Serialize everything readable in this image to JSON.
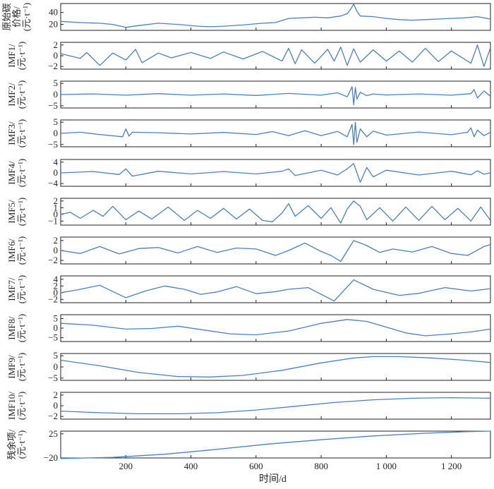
{
  "chart_data": {
    "type": "line",
    "layout": "stacked-panels",
    "xlabel": "时间/d",
    "xlim": [
      0,
      1320
    ],
    "x_ticks": [
      200,
      400,
      600,
      800,
      1000,
      1200
    ],
    "x_tick_labels": [
      "200",
      "400",
      "600",
      "800",
      "1 000",
      "1 200"
    ],
    "line_color": "#4a7fc1",
    "grid": false,
    "panels": [
      {
        "id": "price",
        "ylabel_lines": [
          "原始碳",
          "价格/",
          "(元·t⁻¹)"
        ],
        "ylim": [
          10,
          55
        ],
        "yticks": [
          20,
          40
        ],
        "ytick_labels": [
          "20",
          "40"
        ],
        "x": [
          0,
          60,
          120,
          160,
          200,
          240,
          300,
          360,
          420,
          460,
          500,
          560,
          620,
          660,
          700,
          740,
          780,
          820,
          860,
          880,
          890,
          900,
          910,
          920,
          960,
          1000,
          1040,
          1080,
          1120,
          1160,
          1200,
          1240,
          1280,
          1320
        ],
        "values": [
          25,
          23,
          22,
          20,
          15,
          18,
          22,
          20,
          17,
          16,
          17,
          19,
          22,
          23,
          30,
          31,
          32,
          31,
          34,
          38,
          45,
          54,
          42,
          34,
          33,
          30,
          28,
          27,
          28,
          29,
          30,
          31,
          33,
          29
        ]
      },
      {
        "id": "imf1",
        "ylabel_lines": [
          "IMF1/",
          "(元·t⁻¹)"
        ],
        "ylim": [
          -2.5,
          2.5
        ],
        "yticks": [
          -2,
          0,
          2
        ],
        "ytick_labels": [
          "−2",
          "0",
          "2"
        ],
        "x": [
          0,
          60,
          80,
          120,
          160,
          200,
          230,
          250,
          300,
          340,
          400,
          460,
          500,
          560,
          620,
          680,
          700,
          720,
          740,
          780,
          820,
          840,
          860,
          880,
          900,
          920,
          960,
          1000,
          1040,
          1080,
          1120,
          1160,
          1200,
          1260,
          1280,
          1300,
          1320
        ],
        "values": [
          0.4,
          -0.5,
          0.6,
          -1.8,
          0.5,
          -0.8,
          1.2,
          -1.3,
          0.5,
          -0.4,
          0.6,
          -0.5,
          0.7,
          -0.6,
          0.8,
          -1.0,
          1.4,
          -1.5,
          1.1,
          -1.4,
          1.2,
          -1.0,
          1.6,
          -1.8,
          1.3,
          -1.2,
          1.1,
          -1.0,
          0.9,
          -1.2,
          1.4,
          -1.1,
          0.9,
          -1.4,
          2.0,
          -2.0,
          1.5
        ]
      },
      {
        "id": "imf2",
        "ylabel_lines": [
          "IMF2/",
          "(元·t⁻¹)"
        ],
        "ylim": [
          -6,
          6
        ],
        "yticks": [
          -5,
          0,
          5
        ],
        "ytick_labels": [
          "−5",
          "0",
          "5"
        ],
        "x": [
          0,
          100,
          200,
          300,
          400,
          500,
          600,
          700,
          800,
          850,
          880,
          895,
          900,
          905,
          910,
          920,
          940,
          960,
          1000,
          1100,
          1200,
          1260,
          1270,
          1280,
          1300,
          1320
        ],
        "values": [
          0,
          0.3,
          -0.3,
          0.4,
          -0.3,
          0.3,
          -0.4,
          0.5,
          -0.3,
          0.8,
          -1.0,
          3.5,
          -4.5,
          3.2,
          -2.0,
          1.0,
          -0.5,
          0.3,
          -0.2,
          0.3,
          -0.3,
          0.4,
          2.2,
          -1.5,
          1.6,
          -0.8
        ]
      },
      {
        "id": "imf3",
        "ylabel_lines": [
          "IMF3/",
          "(元·t⁻¹)"
        ],
        "ylim": [
          -6,
          6
        ],
        "yticks": [
          -5,
          0,
          5
        ],
        "ytick_labels": [
          "−5",
          "0",
          "5"
        ],
        "x": [
          0,
          60,
          120,
          190,
          200,
          210,
          220,
          300,
          400,
          500,
          600,
          650,
          700,
          750,
          800,
          850,
          880,
          895,
          900,
          905,
          910,
          920,
          940,
          960,
          1000,
          1100,
          1200,
          1250,
          1260,
          1270,
          1280,
          1300,
          1320
        ],
        "values": [
          0,
          0.5,
          -0.5,
          -1.5,
          2.0,
          -1.2,
          0.5,
          0.3,
          -0.3,
          0.4,
          -0.5,
          0.8,
          -1.0,
          1.2,
          -1.0,
          0.9,
          -1.5,
          4.0,
          -5.0,
          5.0,
          -4.0,
          2.0,
          -1.5,
          1.0,
          -0.8,
          0.6,
          -0.6,
          0.5,
          2.5,
          -1.5,
          1.5,
          -1.0,
          0.5
        ]
      },
      {
        "id": "imf4",
        "ylabel_lines": [
          "IMF4/",
          "(元·t⁻¹)"
        ],
        "ylim": [
          -5,
          5
        ],
        "yticks": [
          -4,
          0,
          4
        ],
        "ytick_labels": [
          "−4",
          "0",
          "4"
        ],
        "x": [
          0,
          100,
          180,
          200,
          220,
          300,
          400,
          500,
          600,
          680,
          700,
          720,
          800,
          850,
          880,
          900,
          920,
          940,
          960,
          1000,
          1100,
          1200,
          1260,
          1280,
          1300,
          1320
        ],
        "values": [
          0,
          0.5,
          -0.6,
          1.5,
          -1.2,
          0.6,
          -0.4,
          0.5,
          -0.4,
          0.6,
          1.5,
          -1.0,
          1.0,
          -0.8,
          1.5,
          3.5,
          -3.5,
          2.0,
          -1.5,
          1.0,
          -0.8,
          0.6,
          -0.7,
          0.8,
          -0.5,
          0
        ]
      },
      {
        "id": "imf5",
        "ylabel_lines": [
          "IMF5/",
          "(元·t⁻¹)"
        ],
        "ylim": [
          -1.6,
          2.4
        ],
        "yticks": [
          -1,
          0,
          1,
          2
        ],
        "ytick_labels": [
          "−1",
          "0",
          "1",
          "2"
        ],
        "x": [
          0,
          30,
          60,
          100,
          130,
          160,
          200,
          240,
          280,
          330,
          380,
          420,
          460,
          500,
          540,
          580,
          620,
          650,
          680,
          700,
          720,
          760,
          800,
          830,
          860,
          880,
          900,
          920,
          940,
          980,
          1020,
          1060,
          1100,
          1140,
          1180,
          1220,
          1260,
          1290,
          1320
        ],
        "values": [
          0,
          0.3,
          -0.6,
          0.6,
          -0.3,
          1.2,
          -0.8,
          0.5,
          -0.7,
          1.1,
          -0.9,
          0.6,
          -0.6,
          0.9,
          -0.7,
          0.8,
          -0.9,
          -1.1,
          0.2,
          1.6,
          -0.3,
          1.3,
          -0.6,
          1.0,
          -1.3,
          0.8,
          2.0,
          1.2,
          -0.8,
          1.0,
          -1.0,
          1.1,
          -0.9,
          1.2,
          -0.8,
          0.9,
          -1.0,
          1.1,
          -0.9
        ]
      },
      {
        "id": "imf6",
        "ylabel_lines": [
          "IMF6/",
          "(元·t⁻¹)"
        ],
        "ylim": [
          -2.7,
          2.7
        ],
        "yticks": [
          -2,
          0,
          2
        ],
        "ytick_labels": [
          "−2",
          "0",
          "2"
        ],
        "x": [
          0,
          60,
          120,
          180,
          240,
          300,
          360,
          420,
          480,
          540,
          600,
          660,
          700,
          750,
          800,
          830,
          860,
          900,
          940,
          980,
          1020,
          1080,
          1140,
          1200,
          1250,
          1300,
          1320
        ],
        "values": [
          0,
          -0.6,
          0.8,
          -0.7,
          0.4,
          0.6,
          -0.5,
          0.8,
          -0.4,
          0.5,
          0.3,
          -1.0,
          0.0,
          1.5,
          -0.2,
          -1.0,
          -2.2,
          2.0,
          1.0,
          -0.4,
          0.3,
          -0.3,
          0.8,
          -0.6,
          -1.0,
          0.8,
          1.2
        ]
      },
      {
        "id": "imf7",
        "ylabel_lines": [
          "IMF7/",
          "(元·t⁻¹)"
        ],
        "ylim": [
          -3,
          5
        ],
        "yticks": [
          -2,
          0,
          2,
          4
        ],
        "ytick_labels": [
          "−2",
          "0",
          "2",
          "4"
        ],
        "x": [
          0,
          50,
          120,
          200,
          260,
          320,
          380,
          430,
          480,
          540,
          600,
          660,
          700,
          760,
          840,
          900,
          960,
          1040,
          1100,
          1180,
          1260,
          1320
        ],
        "values": [
          0,
          0.8,
          2.2,
          -1.5,
          0.5,
          2.0,
          1.0,
          -0.5,
          0.2,
          1.8,
          -0.3,
          0.3,
          1.0,
          1.5,
          -2.5,
          3.8,
          1.0,
          -0.8,
          -0.2,
          1.5,
          0.5,
          1.2
        ]
      },
      {
        "id": "imf8",
        "ylabel_lines": [
          "IMF8/",
          "(元·t⁻¹)"
        ],
        "ylim": [
          -7,
          7
        ],
        "yticks": [
          -5,
          0,
          5
        ],
        "ytick_labels": [
          "−5",
          "0",
          "5"
        ],
        "x": [
          0,
          100,
          200,
          280,
          360,
          440,
          520,
          600,
          700,
          800,
          880,
          940,
          1000,
          1060,
          1120,
          1200,
          1260,
          1320
        ],
        "values": [
          2.5,
          1.5,
          -0.5,
          -0.2,
          1.0,
          -1.0,
          -3.0,
          -3.5,
          -1.5,
          2.5,
          4.5,
          3.5,
          0.5,
          -2.5,
          -4.0,
          -3.0,
          -2.0,
          -0.5
        ]
      },
      {
        "id": "imf9",
        "ylabel_lines": [
          "IMF9/",
          "(元·t⁻¹)"
        ],
        "ylim": [
          -6,
          6
        ],
        "yticks": [
          -5,
          0,
          5
        ],
        "ytick_labels": [
          "−5",
          "0",
          "5"
        ],
        "x": [
          0,
          120,
          240,
          360,
          460,
          560,
          680,
          800,
          900,
          960,
          1040,
          1140,
          1240,
          1320
        ],
        "values": [
          3.0,
          0.5,
          -2.5,
          -4.3,
          -4.5,
          -3.8,
          -1.5,
          1.8,
          4.0,
          4.6,
          4.6,
          4.0,
          3.0,
          2.0
        ]
      },
      {
        "id": "imf10",
        "ylabel_lines": [
          "IMF10/",
          "(元·t⁻¹)"
        ],
        "ylim": [
          -2.5,
          2.5
        ],
        "yticks": [
          -2,
          0,
          2
        ],
        "ytick_labels": [
          "−2",
          "0",
          "2"
        ],
        "x": [
          0,
          120,
          240,
          360,
          480,
          600,
          720,
          840,
          960,
          1080,
          1200,
          1320
        ],
        "values": [
          -1.0,
          -1.3,
          -1.5,
          -1.5,
          -1.3,
          -0.8,
          -0.1,
          0.6,
          1.1,
          1.4,
          1.5,
          1.4
        ]
      },
      {
        "id": "residual",
        "ylabel_lines": [
          "残余项/",
          "(元·t⁻¹)"
        ],
        "ylim": [
          -20,
          30
        ],
        "yticks": [
          -20,
          25
        ],
        "ytick_labels": [
          "−20",
          "25"
        ],
        "x": [
          0,
          160,
          320,
          480,
          640,
          800,
          960,
          1120,
          1240,
          1320
        ],
        "values": [
          -21,
          -19,
          -13,
          -4,
          6,
          14,
          21,
          26,
          29,
          30
        ]
      }
    ]
  }
}
